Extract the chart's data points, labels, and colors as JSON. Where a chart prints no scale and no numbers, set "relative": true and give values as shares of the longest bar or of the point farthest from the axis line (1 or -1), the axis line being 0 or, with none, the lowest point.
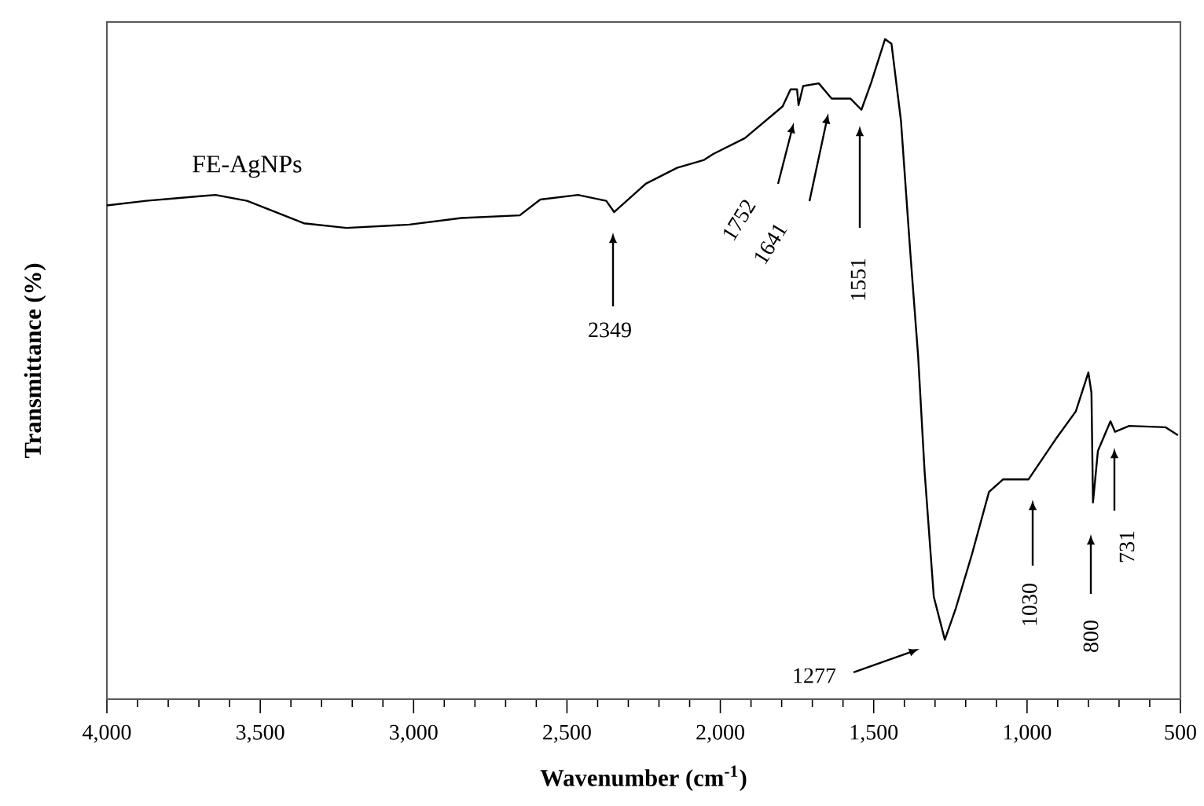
{
  "chart_data": {
    "type": "line",
    "relative": true,
    "xlabel": "Wavenumber (cm$^{-1}$)",
    "ylabel": "Transmittance (%)",
    "xlim": [
      4000,
      500
    ],
    "xticks": [
      {
        "value": 4000,
        "label": "4,000"
      },
      {
        "value": 3500,
        "label": "3,500"
      },
      {
        "value": 3000,
        "label": "3,000"
      },
      {
        "value": 2500,
        "label": "2,500"
      },
      {
        "value": 2000,
        "label": "2,000"
      },
      {
        "value": 1500,
        "label": "1,500"
      },
      {
        "value": 1000,
        "label": "1,000"
      },
      {
        "value": 500,
        "label": "500"
      }
    ],
    "tick_labels": "x",
    "grid": false,
    "series": [
      {
        "name": "FE-AgNPs",
        "color": "#000000",
        "x": [
          4000,
          3872,
          3697,
          3646,
          3543,
          3358,
          3219,
          3014,
          2844,
          2654,
          2587,
          2464,
          2372,
          2346,
          2243,
          2141,
          2053,
          2023,
          1920,
          1797,
          1771,
          1750,
          1745,
          1730,
          1679,
          1637,
          1612,
          1576,
          1540,
          1509,
          1463,
          1442,
          1411,
          1381,
          1355,
          1334,
          1304,
          1268,
          1232,
          1180,
          1124,
          1078,
          995,
          908,
          841,
          800,
          790,
          785,
          769,
          728,
          713,
          667,
          549,
          508
        ],
        "values": [
          0.748,
          0.755,
          0.762,
          0.764,
          0.755,
          0.721,
          0.714,
          0.719,
          0.729,
          0.733,
          0.757,
          0.764,
          0.755,
          0.738,
          0.781,
          0.805,
          0.817,
          0.826,
          0.85,
          0.898,
          0.924,
          0.924,
          0.9,
          0.929,
          0.933,
          0.91,
          0.91,
          0.91,
          0.893,
          0.933,
          1,
          0.993,
          0.876,
          0.679,
          0.519,
          0.345,
          0.155,
          0.09,
          0.138,
          0.219,
          0.314,
          0.333,
          0.333,
          0.393,
          0.436,
          0.495,
          0.464,
          0.298,
          0.376,
          0.421,
          0.405,
          0.414,
          0.412,
          0.4
        ]
      }
    ],
    "annotations": [
      "2349",
      "1752",
      "1641",
      "1551",
      "1277",
      "1030",
      "800",
      "731"
    ]
  }
}
